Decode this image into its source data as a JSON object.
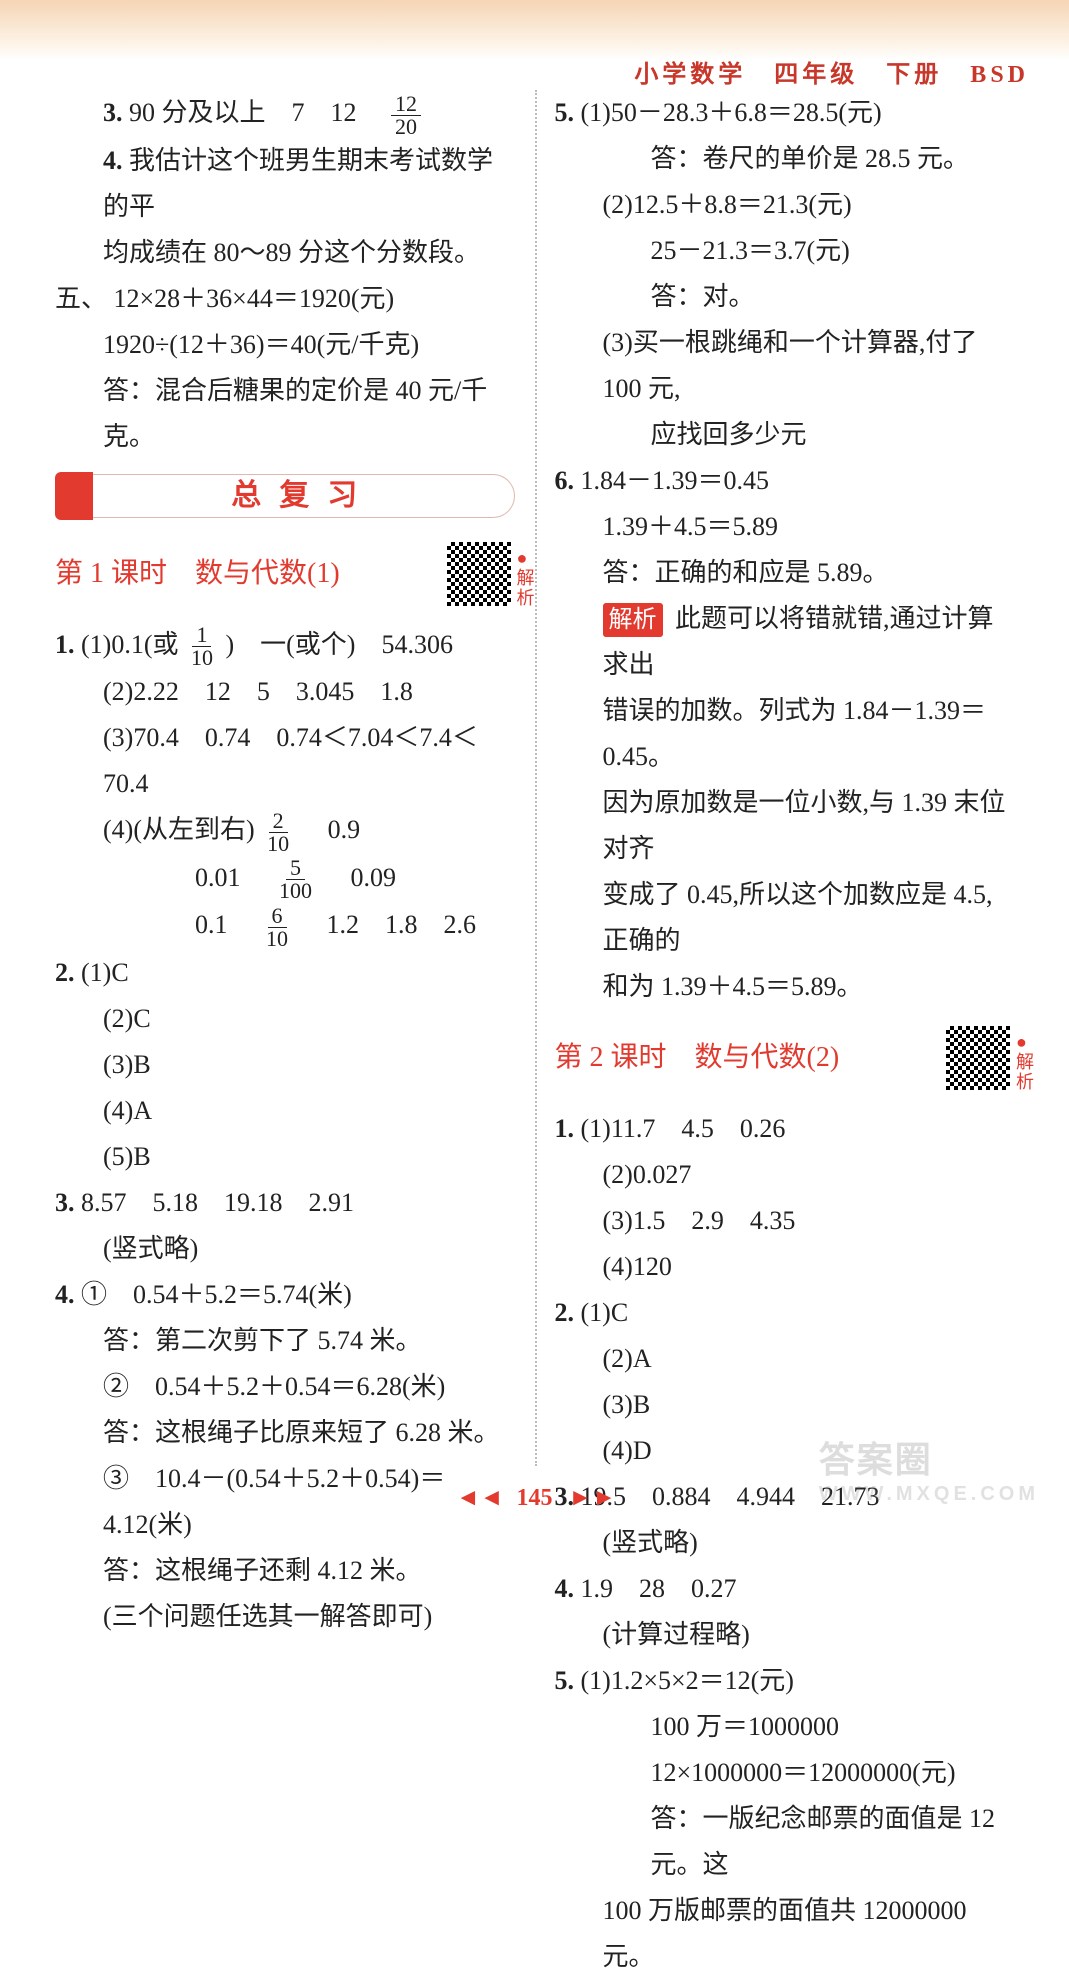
{
  "header": {
    "text": "小学数学　四年级　下册　BSD",
    "color": "#c7372a"
  },
  "left": {
    "l1_a": "3.",
    "l1_b": "90 分及以上　7　12　",
    "l1_frac": {
      "num": "12",
      "den": "20"
    },
    "l2_a": "4.",
    "l2_b": "我估计这个班男生期末考试数学的平",
    "l3": "均成绩在 80～89 分这个分数段。",
    "l4_a": "五、",
    "l4_b": "12×28＋36×44＝1920(元)",
    "l5": "1920÷(12＋36)＝40(元/千克)",
    "l6": "答：混合后糖果的定价是 40 元/千克。",
    "banner": "总复习",
    "lesson1": "第 1 课时　数与代数(1)",
    "qr1_label": "●解析",
    "q1_a": "1.",
    "q1_b1": "(1)0.1(或",
    "q1_frac1": {
      "num": "1",
      "den": "10"
    },
    "q1_b2": ")　一(或个)　54.306",
    "q1_c": "(2)2.22　12　5　3.045　1.8",
    "q1_d": "(3)70.4　0.74　0.74＜7.04＜7.4＜70.4",
    "q1_e1": "(4)(从左到右)",
    "q1_frac2": {
      "num": "2",
      "den": "10"
    },
    "q1_e2": "　0.9",
    "q1_f1": "0.01　",
    "q1_frac3": {
      "num": "5",
      "den": "100"
    },
    "q1_f2": "　0.09",
    "q1_g1": "0.1　",
    "q1_frac4": {
      "num": "6",
      "den": "10"
    },
    "q1_g2": "　1.2　1.8　2.6",
    "q2_a": "2.",
    "q2_1": "(1)C",
    "q2_2": "(2)C",
    "q2_3": "(3)B",
    "q2_4": "(4)A",
    "q2_5": "(5)B",
    "q3_a": "3.",
    "q3_b": "8.57　5.18　19.18　2.91",
    "q3_c": "(竖式略)",
    "q4_a": "4.",
    "q4_1": "①　0.54＋5.2＝5.74(米)",
    "q4_1a": "答：第二次剪下了 5.74 米。",
    "q4_2": "②　0.54＋5.2＋0.54＝6.28(米)",
    "q4_2a": "答：这根绳子比原来短了 6.28 米。",
    "q4_3": "③　10.4－(0.54＋5.2＋0.54)＝4.12(米)",
    "q4_3a": "答：这根绳子还剩 4.12 米。",
    "q4_4": "(三个问题任选其一解答即可)"
  },
  "right": {
    "q5_a": "5.",
    "q5_1": "(1)50－28.3＋6.8＝28.5(元)",
    "q5_1a": "答：卷尺的单价是 28.5 元。",
    "q5_2": "(2)12.5＋8.8＝21.3(元)",
    "q5_2b": "25－21.3＝3.7(元)",
    "q5_2a": "答：对。",
    "q5_3": "(3)买一根跳绳和一个计算器,付了 100 元,",
    "q5_3b": "应找回多少元",
    "q6_a": "6.",
    "q6_1": "1.84－1.39＝0.45",
    "q6_2": "1.39＋4.5＝5.89",
    "q6_3": "答：正确的和应是 5.89。",
    "jiexi": "解析",
    "jx1": "此题可以将错就错,通过计算求出",
    "jx2": "错误的加数。列式为 1.84－1.39＝0.45。",
    "jx3": "因为原加数是一位小数,与 1.39 末位对齐",
    "jx4": "变成了 0.45,所以这个加数应是 4.5,正确的",
    "jx5": "和为 1.39＋4.5＝5.89。",
    "lesson2": "第 2 课时　数与代数(2)",
    "qr2_label": "●解析",
    "r1_a": "1.",
    "r1_1": "(1)11.7　4.5　0.26",
    "r1_2": "(2)0.027",
    "r1_3": "(3)1.5　2.9　4.35",
    "r1_4": "(4)120",
    "r2_a": "2.",
    "r2_1": "(1)C",
    "r2_2": "(2)A",
    "r2_3": "(3)B",
    "r2_4": "(4)D",
    "r3_a": "3.",
    "r3_b": "19.5　0.884　4.944　21.73",
    "r3_c": "(竖式略)",
    "r4_a": "4.",
    "r4_b": "1.9　28　0.27",
    "r4_c": "(计算过程略)",
    "r5_a": "5.",
    "r5_1": "(1)1.2×5×2＝12(元)",
    "r5_2": "100 万＝1000000",
    "r5_3": "12×1000000＝12000000(元)",
    "r5_4": "答：一版纪念邮票的面值是 12 元。这",
    "r5_5": "100 万版邮票的面值共 12000000 元。"
  },
  "footer": {
    "page": "145",
    "left_arrows": "◄ ◄",
    "right_arrows": "► ►"
  },
  "watermark": {
    "main": "答案圈",
    "sub": "WWW.MXQE.COM"
  },
  "colors": {
    "accent": "#e23a2f",
    "text": "#222222",
    "header_bg": "#f5d5b5"
  }
}
